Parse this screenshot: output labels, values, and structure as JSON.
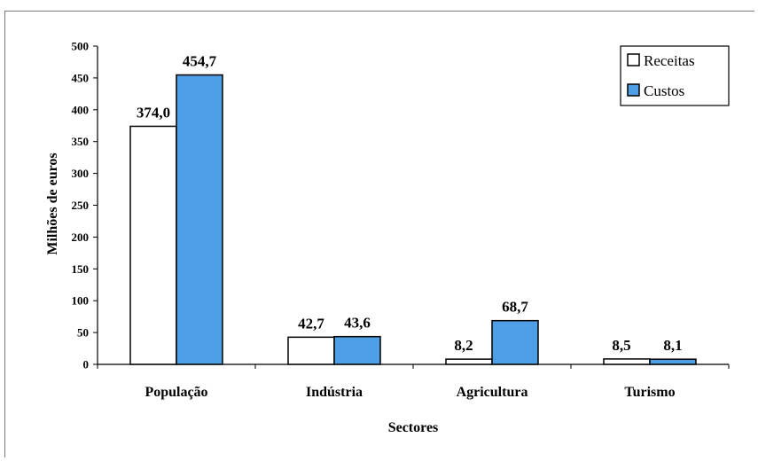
{
  "chart_data": {
    "type": "bar",
    "categories": [
      "População",
      "Indústria",
      "Agricultura",
      "Turismo"
    ],
    "series": [
      {
        "name": "Receitas",
        "values": [
          374.0,
          42.7,
          8.2,
          8.5
        ],
        "labels": [
          "374,0",
          "42,7",
          "8,2",
          "8,5"
        ],
        "color": "#ffffff"
      },
      {
        "name": "Custos",
        "values": [
          454.7,
          43.6,
          68.7,
          8.1
        ],
        "labels": [
          "454,7",
          "43,6",
          "68,7",
          "8,1"
        ],
        "color": "#4f9fe6"
      }
    ],
    "xlabel": "Sectores",
    "ylabel": "Milhões de euros",
    "ylim": [
      0,
      500
    ],
    "yticks": [
      0,
      50,
      100,
      150,
      200,
      250,
      300,
      350,
      400,
      450,
      500
    ],
    "grid": false,
    "legend_position": "top-right"
  }
}
